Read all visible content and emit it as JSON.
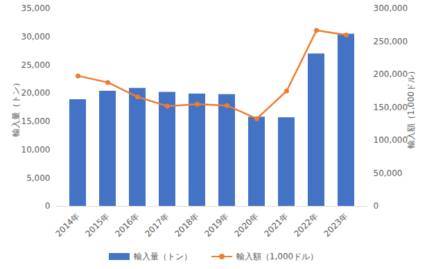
{
  "chart_data": {
    "type": "bar",
    "categories": [
      "2014年",
      "2015年",
      "2016年",
      "2017年",
      "2018年",
      "2019年",
      "2020年",
      "2021年",
      "2022年",
      "2023年"
    ],
    "series": [
      {
        "name": "輸入量（トン）",
        "type": "bar",
        "color": "#4472c4",
        "values": [
          18900,
          20400,
          20900,
          20200,
          19900,
          19800,
          15800,
          15700,
          27000,
          30500
        ]
      },
      {
        "name": "輸入額（1,000ドル）",
        "type": "line",
        "axis": "y2",
        "color": "#ed7d31",
        "marker": "circle",
        "values": [
          198000,
          188000,
          166000,
          152000,
          155000,
          153000,
          133000,
          175000,
          267000,
          260000
        ]
      }
    ],
    "y_label": "輸入量（トン）",
    "y2_label": "輸入額（1,000ドル）",
    "ylim": [
      0,
      35000
    ],
    "yticks": [
      0,
      {
        "value": 5000,
        "label": "5,000"
      },
      {
        "value": 10000,
        "label": "10,000"
      },
      {
        "value": 15000,
        "label": "15,000"
      },
      {
        "value": 20000,
        "label": "20,000"
      },
      {
        "value": 25000,
        "label": "25,000"
      },
      {
        "value": 30000,
        "label": "30,000"
      },
      {
        "value": 35000,
        "label": "35,000"
      }
    ],
    "y2lim": [
      0,
      300000
    ],
    "y2ticks": [
      0,
      {
        "value": 50000,
        "label": "50,000"
      },
      {
        "value": 100000,
        "label": "100,000"
      },
      {
        "value": 150000,
        "label": "150,000"
      },
      {
        "value": 200000,
        "label": "200,000"
      },
      {
        "value": 250000,
        "label": "250,000"
      },
      {
        "value": 300000,
        "label": "300,000"
      }
    ],
    "legend": "bottom"
  }
}
